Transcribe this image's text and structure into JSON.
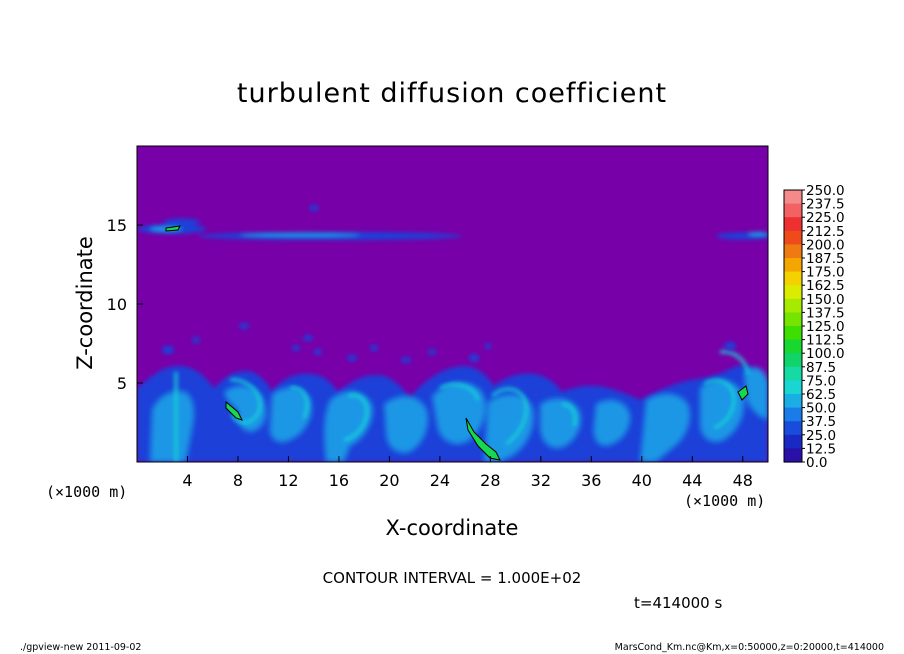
{
  "chart_data": {
    "type": "heatmap",
    "title": "turbulent diffusion coefficient",
    "xlabel": "X-coordinate",
    "ylabel": "Z-coordinate",
    "x_unit_label": "(×1000 m)",
    "x_unit_label_right": "(×1000 m)",
    "xlim": [
      0,
      50
    ],
    "ylim": [
      0,
      20
    ],
    "x_ticks": [
      4,
      8,
      12,
      16,
      20,
      24,
      28,
      32,
      36,
      40,
      44,
      48
    ],
    "y_ticks": [
      5,
      10,
      15
    ],
    "colorbar": {
      "levels": [
        "250.0",
        "237.5",
        "225.0",
        "212.5",
        "200.0",
        "187.5",
        "175.0",
        "162.5",
        "150.0",
        "137.5",
        "125.0",
        "112.5",
        "100.0",
        "87.5",
        "75.0",
        "62.5",
        "50.0",
        "37.5",
        "25.0",
        "12.5",
        "0.0"
      ],
      "colors": [
        "#f48a8a",
        "#f26262",
        "#ef3030",
        "#ee4a1a",
        "#f07a12",
        "#f4a600",
        "#f4d200",
        "#dcec00",
        "#a6ea00",
        "#74e400",
        "#3ede00",
        "#18d830",
        "#10d46a",
        "#16d9a4",
        "#1ad6d2",
        "#1aaee4",
        "#1a7ce8",
        "#1a4cdc",
        "#1a28c4",
        "#2a10a8",
        "#7800a8"
      ]
    },
    "field_description_colors": {
      "background": "#7800a8",
      "low": "#1e40d8",
      "mid": "#1a9ce6",
      "high": "#18d2d8",
      "peak": "#18d850"
    },
    "grid": false,
    "legend": "colorbar right"
  },
  "annotations": {
    "contour_interval": "CONTOUR INTERVAL = 1.000E+02",
    "time": "t=414000 s"
  },
  "footer": {
    "left": "./gpview-new  2011-09-02",
    "right": "MarsCond_Km.nc@Km,x=0:50000,z=0:20000,t=414000"
  }
}
